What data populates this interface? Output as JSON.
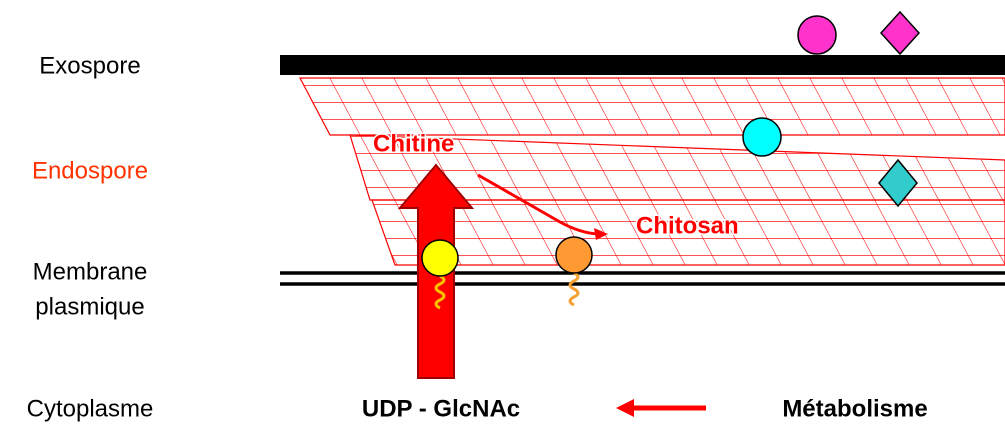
{
  "layers": {
    "exospore": "Exospore",
    "endospore": "Endospore",
    "membrane": [
      "Membrane",
      "plasmique"
    ],
    "cytoplasme": "Cytoplasme"
  },
  "labels": {
    "chitine": "Chitine",
    "chitosan": "Chitosan",
    "substrate": "UDP - GlcNAc",
    "metabolism": "Métabolisme"
  }
}
